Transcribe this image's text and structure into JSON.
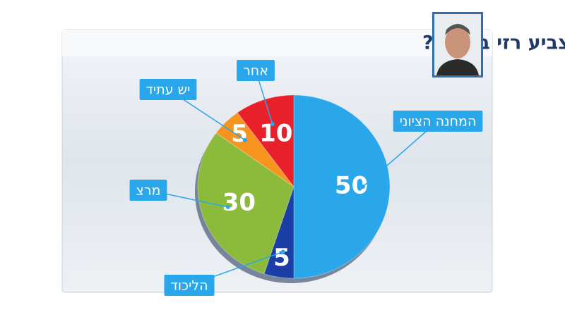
{
  "chart_data": {
    "type": "pie",
    "title": "למי להערכתך יצביע רזי ברקאי?",
    "categories": [
      "המחנה הציוני",
      "הליכוד",
      "מרצ",
      "יש עתיד",
      "אחר"
    ],
    "values": [
      50,
      5,
      30,
      5,
      10
    ],
    "colors": [
      "#2aa6ea",
      "#1b3ea6",
      "#8cba3a",
      "#f7941d",
      "#e8202a"
    ]
  }
}
